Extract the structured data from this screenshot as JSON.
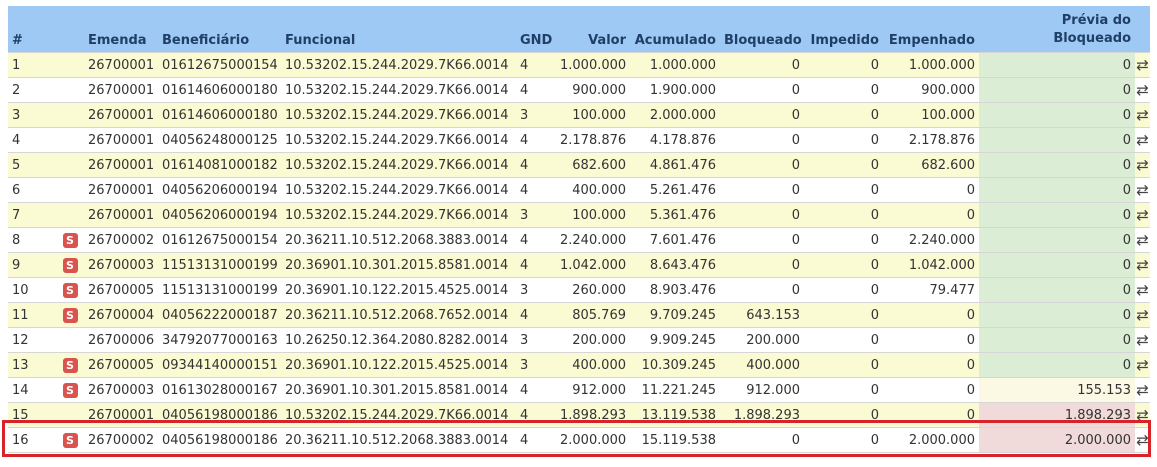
{
  "headers": {
    "num": "#",
    "emenda": "Emenda",
    "beneficiario": "Beneficiário",
    "funcional": "Funcional",
    "gnd": "GND",
    "valor": "Valor",
    "acumulado": "Acumulado",
    "bloqueado": "Bloqueado",
    "impedido": "Impedido",
    "empenhado": "Empenhado",
    "previa": "Prévia do Bloqueado"
  },
  "badge_label": "S",
  "swap_icon": "⇄",
  "colors": {
    "header_bg": "#9fc9f5",
    "row_alt": "#fbfbd3",
    "previa_green": "#dcedd6",
    "previa_yellow": "#fbf8e3",
    "previa_red": "#f1dada",
    "badge": "#d9534f",
    "highlight_border": "#d9232a"
  },
  "rows": [
    {
      "num": "1",
      "badge": false,
      "emenda": "26700001",
      "beneficiario": "01612675000154",
      "funcional": "10.53202.15.244.2029.7K66.0014",
      "gnd": "4",
      "valor": "1.000.000",
      "acumulado": "1.000.000",
      "bloqueado": "0",
      "impedido": "0",
      "empenhado": "1.000.000",
      "previa": "0",
      "previa_state": "green"
    },
    {
      "num": "2",
      "badge": false,
      "emenda": "26700001",
      "beneficiario": "01614606000180",
      "funcional": "10.53202.15.244.2029.7K66.0014",
      "gnd": "4",
      "valor": "900.000",
      "acumulado": "1.900.000",
      "bloqueado": "0",
      "impedido": "0",
      "empenhado": "900.000",
      "previa": "0",
      "previa_state": "green"
    },
    {
      "num": "3",
      "badge": false,
      "emenda": "26700001",
      "beneficiario": "01614606000180",
      "funcional": "10.53202.15.244.2029.7K66.0014",
      "gnd": "3",
      "valor": "100.000",
      "acumulado": "2.000.000",
      "bloqueado": "0",
      "impedido": "0",
      "empenhado": "100.000",
      "previa": "0",
      "previa_state": "green"
    },
    {
      "num": "4",
      "badge": false,
      "emenda": "26700001",
      "beneficiario": "04056248000125",
      "funcional": "10.53202.15.244.2029.7K66.0014",
      "gnd": "4",
      "valor": "2.178.876",
      "acumulado": "4.178.876",
      "bloqueado": "0",
      "impedido": "0",
      "empenhado": "2.178.876",
      "previa": "0",
      "previa_state": "green"
    },
    {
      "num": "5",
      "badge": false,
      "emenda": "26700001",
      "beneficiario": "01614081000182",
      "funcional": "10.53202.15.244.2029.7K66.0014",
      "gnd": "4",
      "valor": "682.600",
      "acumulado": "4.861.476",
      "bloqueado": "0",
      "impedido": "0",
      "empenhado": "682.600",
      "previa": "0",
      "previa_state": "green"
    },
    {
      "num": "6",
      "badge": false,
      "emenda": "26700001",
      "beneficiario": "04056206000194",
      "funcional": "10.53202.15.244.2029.7K66.0014",
      "gnd": "4",
      "valor": "400.000",
      "acumulado": "5.261.476",
      "bloqueado": "0",
      "impedido": "0",
      "empenhado": "0",
      "previa": "0",
      "previa_state": "green"
    },
    {
      "num": "7",
      "badge": false,
      "emenda": "26700001",
      "beneficiario": "04056206000194",
      "funcional": "10.53202.15.244.2029.7K66.0014",
      "gnd": "3",
      "valor": "100.000",
      "acumulado": "5.361.476",
      "bloqueado": "0",
      "impedido": "0",
      "empenhado": "0",
      "previa": "0",
      "previa_state": "green"
    },
    {
      "num": "8",
      "badge": true,
      "emenda": "26700002",
      "beneficiario": "01612675000154",
      "funcional": "20.36211.10.512.2068.3883.0014",
      "gnd": "4",
      "valor": "2.240.000",
      "acumulado": "7.601.476",
      "bloqueado": "0",
      "impedido": "0",
      "empenhado": "2.240.000",
      "previa": "0",
      "previa_state": "green"
    },
    {
      "num": "9",
      "badge": true,
      "emenda": "26700003",
      "beneficiario": "11513131000199",
      "funcional": "20.36901.10.301.2015.8581.0014",
      "gnd": "4",
      "valor": "1.042.000",
      "acumulado": "8.643.476",
      "bloqueado": "0",
      "impedido": "0",
      "empenhado": "1.042.000",
      "previa": "0",
      "previa_state": "green"
    },
    {
      "num": "10",
      "badge": true,
      "emenda": "26700005",
      "beneficiario": "11513131000199",
      "funcional": "20.36901.10.122.2015.4525.0014",
      "gnd": "3",
      "valor": "260.000",
      "acumulado": "8.903.476",
      "bloqueado": "0",
      "impedido": "0",
      "empenhado": "79.477",
      "previa": "0",
      "previa_state": "green"
    },
    {
      "num": "11",
      "badge": true,
      "emenda": "26700004",
      "beneficiario": "04056222000187",
      "funcional": "20.36211.10.512.2068.7652.0014",
      "gnd": "4",
      "valor": "805.769",
      "acumulado": "9.709.245",
      "bloqueado": "643.153",
      "impedido": "0",
      "empenhado": "0",
      "previa": "0",
      "previa_state": "green"
    },
    {
      "num": "12",
      "badge": false,
      "emenda": "26700006",
      "beneficiario": "34792077000163",
      "funcional": "10.26250.12.364.2080.8282.0014",
      "gnd": "3",
      "valor": "200.000",
      "acumulado": "9.909.245",
      "bloqueado": "200.000",
      "impedido": "0",
      "empenhado": "0",
      "previa": "0",
      "previa_state": "green"
    },
    {
      "num": "13",
      "badge": true,
      "emenda": "26700005",
      "beneficiario": "09344140000151",
      "funcional": "20.36901.10.122.2015.4525.0014",
      "gnd": "3",
      "valor": "400.000",
      "acumulado": "10.309.245",
      "bloqueado": "400.000",
      "impedido": "0",
      "empenhado": "0",
      "previa": "0",
      "previa_state": "green"
    },
    {
      "num": "14",
      "badge": true,
      "emenda": "26700003",
      "beneficiario": "01613028000167",
      "funcional": "20.36901.10.301.2015.8581.0014",
      "gnd": "4",
      "valor": "912.000",
      "acumulado": "11.221.245",
      "bloqueado": "912.000",
      "impedido": "0",
      "empenhado": "0",
      "previa": "155.153",
      "previa_state": "yellow"
    },
    {
      "num": "15",
      "badge": false,
      "emenda": "26700001",
      "beneficiario": "04056198000186",
      "funcional": "10.53202.15.244.2029.7K66.0014",
      "gnd": "4",
      "valor": "1.898.293",
      "acumulado": "13.119.538",
      "bloqueado": "1.898.293",
      "impedido": "0",
      "empenhado": "0",
      "previa": "1.898.293",
      "previa_state": "red"
    },
    {
      "num": "16",
      "badge": true,
      "emenda": "26700002",
      "beneficiario": "04056198000186",
      "funcional": "20.36211.10.512.2068.3883.0014",
      "gnd": "4",
      "valor": "2.000.000",
      "acumulado": "15.119.538",
      "bloqueado": "0",
      "impedido": "0",
      "empenhado": "2.000.000",
      "previa": "2.000.000",
      "previa_state": "red"
    }
  ]
}
